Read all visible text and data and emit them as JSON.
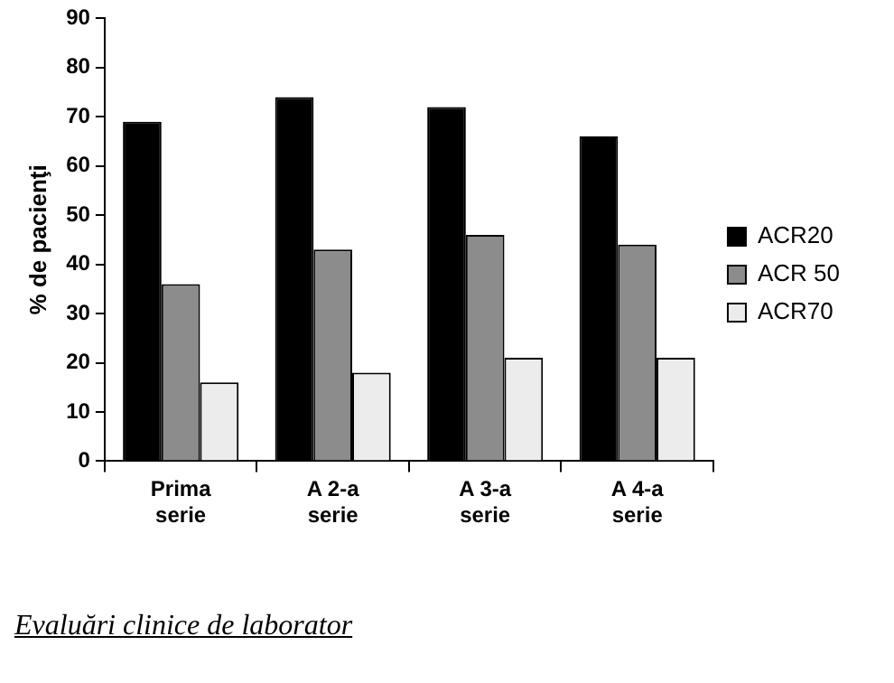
{
  "chart_data": {
    "type": "bar",
    "ylabel": "% de pacienţi",
    "categories": [
      "Prima serie",
      "A 2-a serie",
      "A 3-a serie",
      "A 4-a serie"
    ],
    "series": [
      {
        "name": "ACR20",
        "color": "#000000",
        "values": [
          69,
          74,
          72,
          66
        ]
      },
      {
        "name": "ACR 50",
        "color": "#8c8c8c",
        "values": [
          36,
          43,
          46,
          44
        ]
      },
      {
        "name": "ACR70",
        "color": "#ececec",
        "values": [
          16,
          18,
          21,
          21
        ]
      }
    ],
    "ylim": [
      0,
      90
    ],
    "yticks": [
      0,
      10,
      20,
      30,
      40,
      50,
      60,
      70,
      80,
      90
    ],
    "grid": false,
    "legend": "right",
    "annotations": [
      "Evaluări clinice de laborator"
    ]
  }
}
